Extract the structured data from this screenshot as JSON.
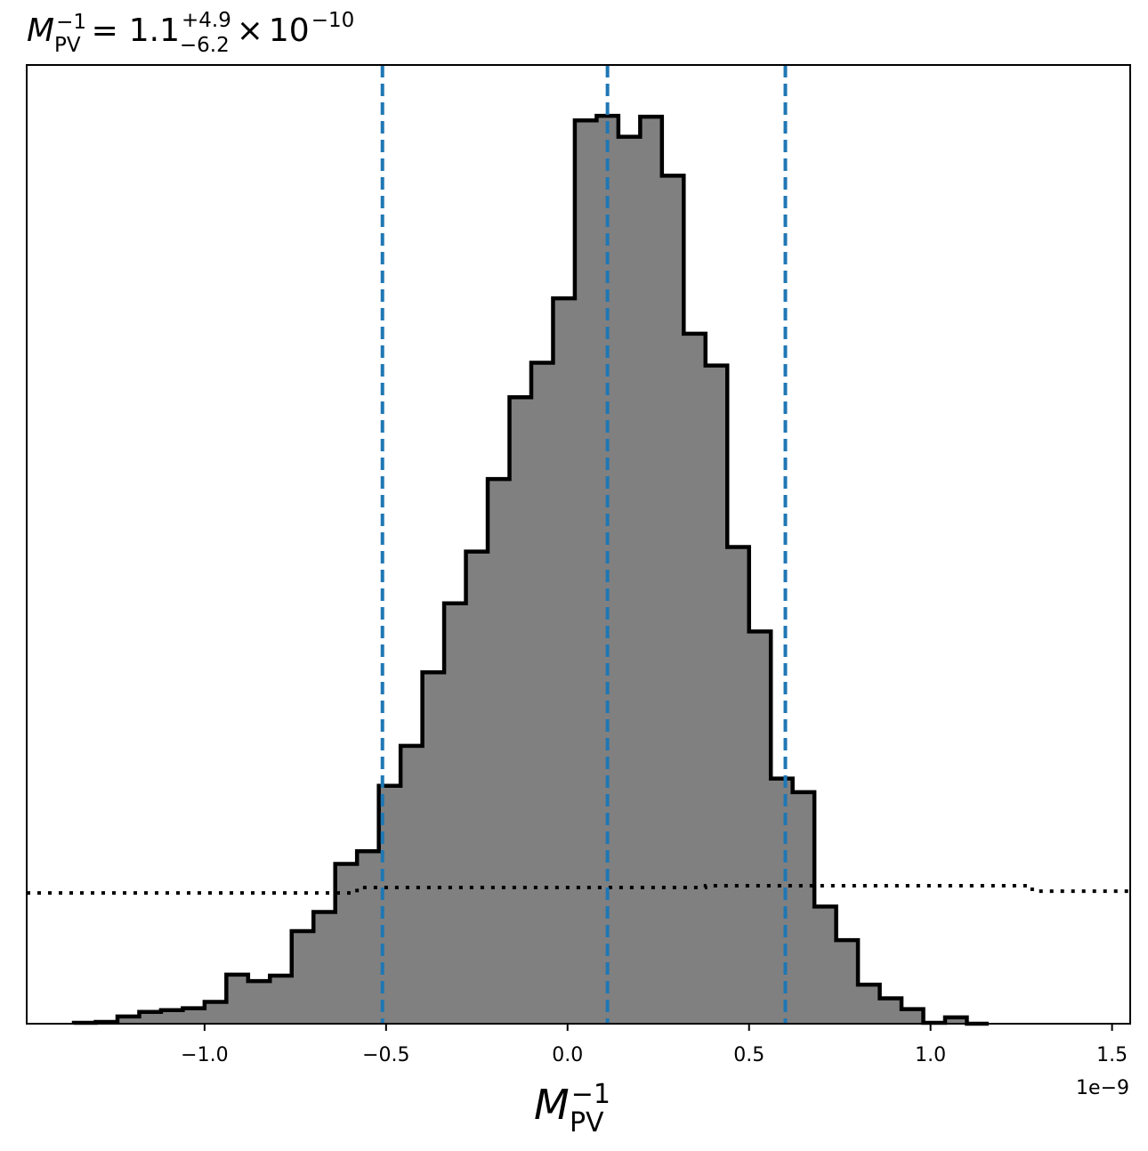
{
  "chart_data": {
    "type": "histogram",
    "title": {
      "symbol": "M",
      "subscript": "PV",
      "superscript": "−1",
      "equals": "=",
      "value": "1.1",
      "upper": "+4.9",
      "lower": "−6.2",
      "times": "×",
      "base": "10",
      "exponent": "−10"
    },
    "xlabel": {
      "symbol": "M",
      "subscript": "PV",
      "superscript": "−1"
    },
    "x_offset_text": "1e−9",
    "xlim": [
      -1.49,
      1.55
    ],
    "ylim": [
      0,
      1.056
    ],
    "x_ticks": [
      {
        "value": -1.0,
        "label": "−1.0"
      },
      {
        "value": -0.5,
        "label": "−0.5"
      },
      {
        "value": 0.0,
        "label": "0.0"
      },
      {
        "value": 0.5,
        "label": "0.5"
      },
      {
        "value": 1.0,
        "label": "1.0"
      },
      {
        "value": 1.5,
        "label": "1.5"
      }
    ],
    "y_ticks_visible": false,
    "bins": {
      "edges": [
        -1.36,
        -1.3,
        -1.24,
        -1.18,
        -1.12,
        -1.06,
        -1.0,
        -0.94,
        -0.88,
        -0.82,
        -0.76,
        -0.7,
        -0.64,
        -0.58,
        -0.52,
        -0.46,
        -0.4,
        -0.34,
        -0.28,
        -0.22,
        -0.16,
        -0.1,
        -0.04,
        0.02,
        0.08,
        0.14,
        0.2,
        0.26,
        0.32,
        0.38,
        0.44,
        0.5,
        0.56,
        0.62,
        0.68,
        0.74,
        0.8,
        0.86,
        0.92,
        0.98,
        1.04,
        1.1,
        1.16
      ],
      "counts": [
        0.001,
        0.002,
        0.008,
        0.013,
        0.015,
        0.017,
        0.024,
        0.054,
        0.047,
        0.053,
        0.102,
        0.123,
        0.176,
        0.19,
        0.262,
        0.306,
        0.387,
        0.463,
        0.52,
        0.6,
        0.69,
        0.728,
        0.799,
        0.995,
        1.0,
        0.977,
        0.999,
        0.934,
        0.76,
        0.725,
        0.525,
        0.432,
        0.27,
        0.255,
        0.129,
        0.092,
        0.043,
        0.028,
        0.016,
        0.001,
        0.007,
        0.0
      ],
      "fill_color": "#808080",
      "edge_color": "#000000"
    },
    "quantile_lines": {
      "values": [
        -0.51,
        0.11,
        0.6
      ],
      "color": "#1f77b4",
      "style": "dashed"
    },
    "prior_line": {
      "x": [
        -1.49,
        -0.58,
        -0.58,
        0.38,
        0.38,
        1.28,
        1.28,
        1.55
      ],
      "y": [
        0.144,
        0.144,
        0.15,
        0.15,
        0.152,
        0.152,
        0.146,
        0.146
      ],
      "color": "#000000",
      "style": "dotted"
    }
  }
}
